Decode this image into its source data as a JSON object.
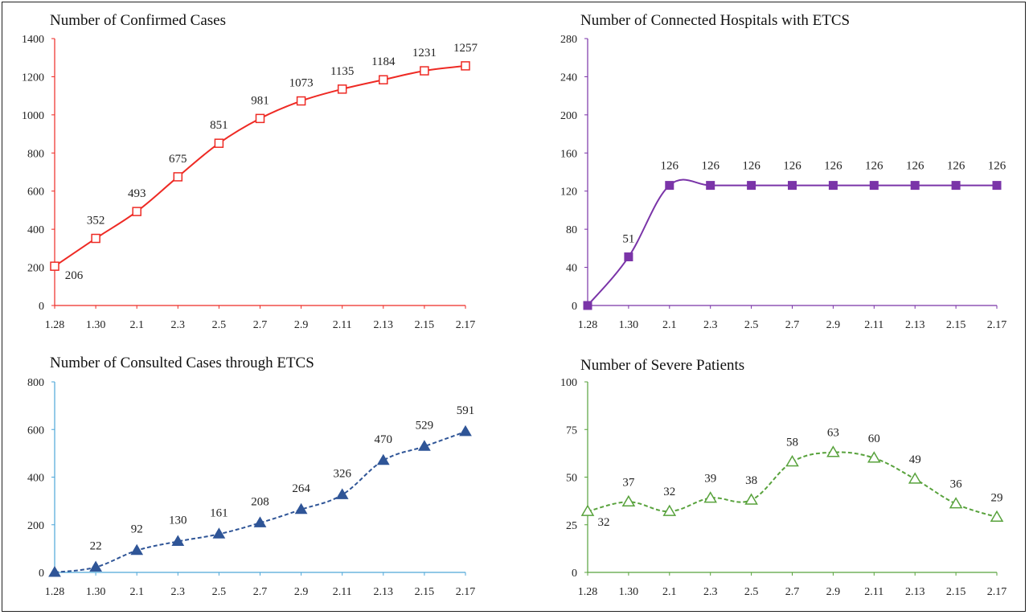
{
  "chart_data": [
    {
      "type": "line",
      "title": "Number of Confirmed Cases",
      "categories": [
        "1.28",
        "1.30",
        "2.1",
        "2.3",
        "2.5",
        "2.7",
        "2.9",
        "2.11",
        "2.13",
        "2.15",
        "2.17"
      ],
      "series": [
        {
          "values": [
            206,
            352,
            493,
            675,
            851,
            981,
            1073,
            1135,
            1184,
            1231,
            1257
          ]
        }
      ],
      "ylim": [
        0,
        1400
      ],
      "yticks": [
        0,
        200,
        400,
        600,
        800,
        1000,
        1200,
        1400
      ],
      "marker": "square-open",
      "line_style": "solid",
      "color": "#ee2a24",
      "axis_color": "#ee2a24"
    },
    {
      "type": "line",
      "title": "Number of Connected Hospitals with ETCS",
      "categories": [
        "1.28",
        "1.30",
        "2.1",
        "2.3",
        "2.5",
        "2.7",
        "2.9",
        "2.11",
        "2.13",
        "2.15",
        "2.17"
      ],
      "series": [
        {
          "values": [
            0,
            51,
            126,
            126,
            126,
            126,
            126,
            126,
            126,
            126,
            126
          ]
        }
      ],
      "ylim": [
        0,
        280
      ],
      "yticks": [
        0,
        40,
        80,
        120,
        160,
        200,
        240,
        280
      ],
      "marker": "square-filled",
      "line_style": "solid",
      "color": "#7a34a8",
      "axis_color": "#7a34a8"
    },
    {
      "type": "line",
      "title": "Number of Consulted Cases through ETCS",
      "categories": [
        "1.28",
        "1.30",
        "2.1",
        "2.3",
        "2.5",
        "2.7",
        "2.9",
        "2.11",
        "2.13",
        "2.15",
        "2.17"
      ],
      "series": [
        {
          "values": [
            0,
            22,
            92,
            130,
            161,
            208,
            264,
            326,
            470,
            529,
            591
          ]
        }
      ],
      "ylim": [
        0,
        800
      ],
      "yticks": [
        0,
        200,
        400,
        600,
        800
      ],
      "marker": "triangle-filled",
      "line_style": "dashed",
      "color": "#2f5597",
      "axis_color": "#4da6d8"
    },
    {
      "type": "line",
      "title": "Number of Severe Patients",
      "categories": [
        "1.28",
        "1.30",
        "2.1",
        "2.3",
        "2.5",
        "2.7",
        "2.9",
        "2.11",
        "2.13",
        "2.15",
        "2.17"
      ],
      "series": [
        {
          "values": [
            32,
            37,
            32,
            39,
            38,
            58,
            63,
            60,
            49,
            36,
            29
          ]
        }
      ],
      "ylim": [
        0,
        100
      ],
      "yticks": [
        0,
        25,
        50,
        75,
        100
      ],
      "marker": "triangle-open",
      "line_style": "dashed",
      "color": "#58a23c",
      "axis_color": "#58a23c"
    }
  ]
}
